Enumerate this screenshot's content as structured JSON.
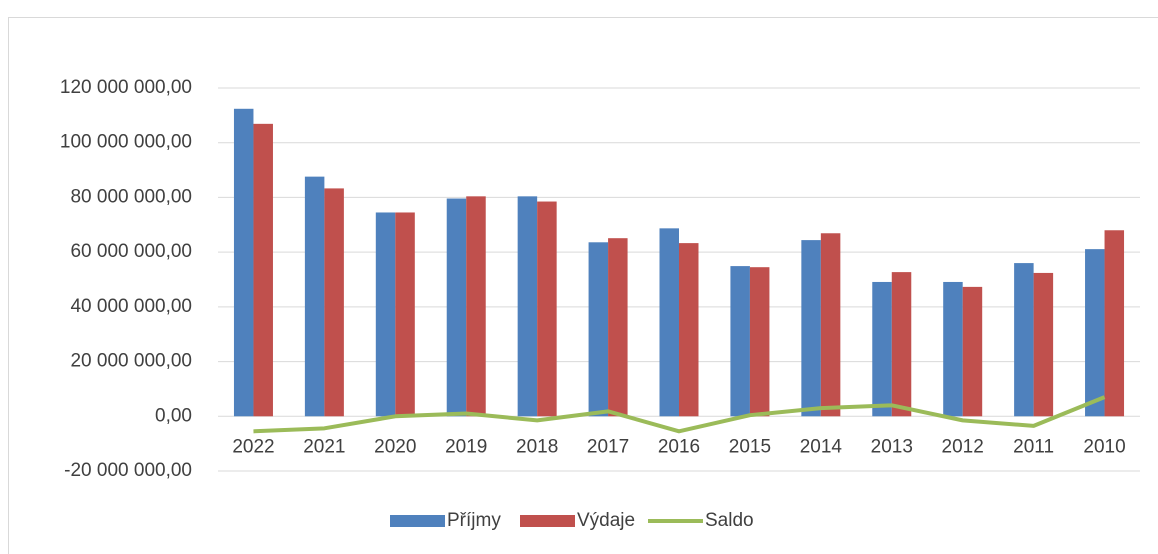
{
  "chart_data": {
    "type": "bar",
    "categories": [
      "2022",
      "2021",
      "2020",
      "2019",
      "2018",
      "2017",
      "2016",
      "2015",
      "2014",
      "2013",
      "2012",
      "2011",
      "2010"
    ],
    "series": [
      {
        "name": "Příjmy",
        "color": "#4f81bd",
        "values": [
          112400000,
          87600000,
          74500000,
          79600000,
          80400000,
          63600000,
          68700000,
          54900000,
          64400000,
          49100000,
          49100000,
          56000000,
          61100000
        ]
      },
      {
        "name": "Výdaje",
        "color": "#c0504d",
        "values": [
          106900000,
          83300000,
          74500000,
          80400000,
          78500000,
          65100000,
          63300000,
          54500000,
          66900000,
          52700000,
          47300000,
          52400000,
          68000000
        ]
      },
      {
        "name": "Saldo",
        "type": "line",
        "color": "#9bbb59",
        "values": [
          -5500000,
          -4400000,
          0,
          1000000,
          -1500000,
          1800000,
          -5500000,
          400000,
          3000000,
          4000000,
          -1500000,
          -3500000,
          7000000
        ]
      }
    ],
    "ylim": [
      -20000000,
      120000000
    ],
    "yticks": [
      {
        "value": -20000000,
        "label": "-20 000 000,00"
      },
      {
        "value": 0,
        "label": "0,00"
      },
      {
        "value": 20000000,
        "label": "20 000 000,00"
      },
      {
        "value": 40000000,
        "label": "40 000 000,00"
      },
      {
        "value": 60000000,
        "label": "60 000 000,00"
      },
      {
        "value": 80000000,
        "label": "80 000 000,00"
      },
      {
        "value": 100000000,
        "label": "100 000 000,00"
      },
      {
        "value": 120000000,
        "label": "120 000 000,00"
      }
    ],
    "grid": true,
    "legend": "bottom"
  }
}
